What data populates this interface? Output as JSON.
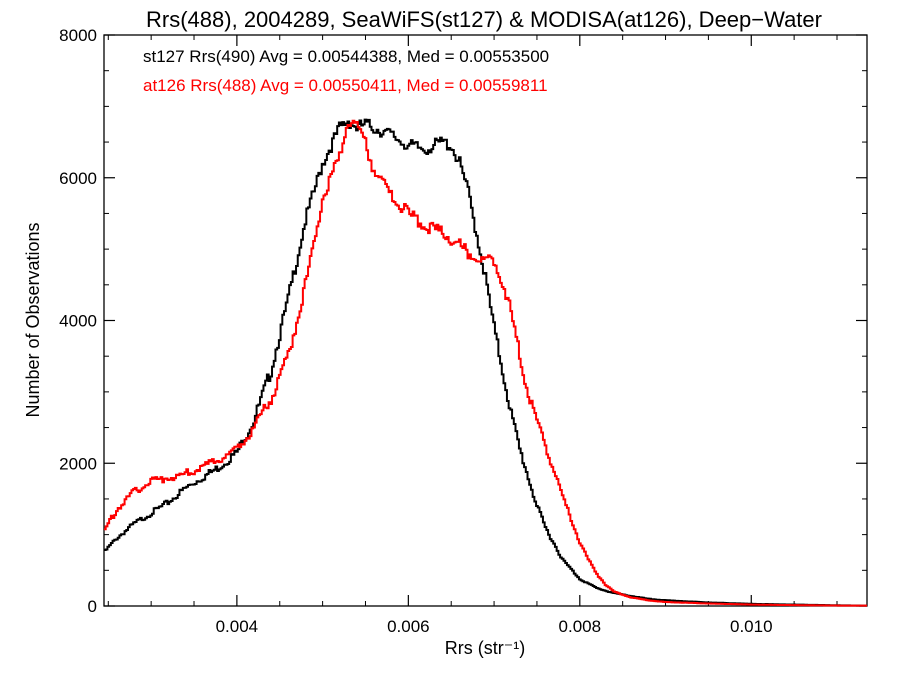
{
  "chart_data": {
    "type": "line",
    "title": "Rrs(488), 2004289, SeaWiFS(st127) & MODISA(at126), Deep−Water",
    "xlabel": "Rrs (str⁻¹)",
    "ylabel": "Number of Observations",
    "xlim": [
      0.00245,
      0.01135
    ],
    "ylim": [
      0,
      8000
    ],
    "x_ticks": [
      0.004,
      0.006,
      0.008,
      0.01
    ],
    "x_tick_labels": [
      "0.004",
      "0.006",
      "0.008",
      "0.010"
    ],
    "y_ticks": [
      0,
      2000,
      4000,
      6000,
      8000
    ],
    "y_tick_labels": [
      "0",
      "2000",
      "4000",
      "6000",
      "8000"
    ],
    "grid": false,
    "legend": "none",
    "annotations": [
      {
        "text": "st127 Rrs(490) Avg = 0.00544388, Med = 0.00553500",
        "color": "#000000"
      },
      {
        "text": "at126 Rrs(488) Avg = 0.00550411, Med = 0.00559811",
        "color": "#ff0000"
      }
    ],
    "series": [
      {
        "color": "#000000",
        "x": [
          0.00245,
          0.0026,
          0.0028,
          0.003,
          0.0032,
          0.0034,
          0.0036,
          0.0038,
          0.004,
          0.0042,
          0.0044,
          0.0046,
          0.0048,
          0.005,
          0.0052,
          0.0053,
          0.0054,
          0.0055,
          0.0056,
          0.0058,
          0.006,
          0.0062,
          0.0064,
          0.0065,
          0.0066,
          0.0067,
          0.0068,
          0.0069,
          0.007,
          0.0071,
          0.0072,
          0.0073,
          0.0074,
          0.0075,
          0.0076,
          0.0078,
          0.008,
          0.0082,
          0.0084,
          0.0086,
          0.0088,
          0.009,
          0.0095,
          0.01,
          0.0105,
          0.011,
          0.01135
        ],
        "y": [
          750,
          950,
          1150,
          1300,
          1450,
          1650,
          1800,
          1950,
          2150,
          2600,
          3300,
          4300,
          5400,
          6200,
          6700,
          6800,
          6700,
          6750,
          6700,
          6600,
          6450,
          6400,
          6500,
          6450,
          6200,
          5800,
          5200,
          4600,
          3900,
          3300,
          2700,
          2200,
          1800,
          1400,
          1100,
          650,
          380,
          250,
          180,
          140,
          100,
          80,
          50,
          30,
          20,
          10,
          5
        ]
      },
      {
        "color": "#ff0000",
        "x": [
          0.00245,
          0.0026,
          0.0028,
          0.003,
          0.0032,
          0.0034,
          0.0036,
          0.0038,
          0.004,
          0.0042,
          0.0044,
          0.0046,
          0.0048,
          0.005,
          0.0052,
          0.0053,
          0.0054,
          0.0055,
          0.0056,
          0.0058,
          0.006,
          0.0062,
          0.0064,
          0.0066,
          0.0068,
          0.0069,
          0.007,
          0.0071,
          0.0072,
          0.0073,
          0.0074,
          0.0075,
          0.0076,
          0.0077,
          0.0078,
          0.0079,
          0.008,
          0.0081,
          0.0082,
          0.0083,
          0.0084,
          0.0086,
          0.0088,
          0.009,
          0.0095,
          0.01,
          0.0105,
          0.011,
          0.01135
        ],
        "y": [
          1050,
          1350,
          1600,
          1750,
          1800,
          1850,
          1950,
          2050,
          2200,
          2500,
          2900,
          3500,
          4500,
          5700,
          6300,
          6800,
          6750,
          6500,
          6100,
          5750,
          5500,
          5300,
          5250,
          5050,
          4850,
          4850,
          4850,
          4550,
          4100,
          3500,
          3000,
          2600,
          2250,
          1900,
          1550,
          1200,
          900,
          650,
          450,
          300,
          200,
          120,
          80,
          55,
          35,
          20,
          12,
          6,
          5
        ]
      }
    ]
  }
}
